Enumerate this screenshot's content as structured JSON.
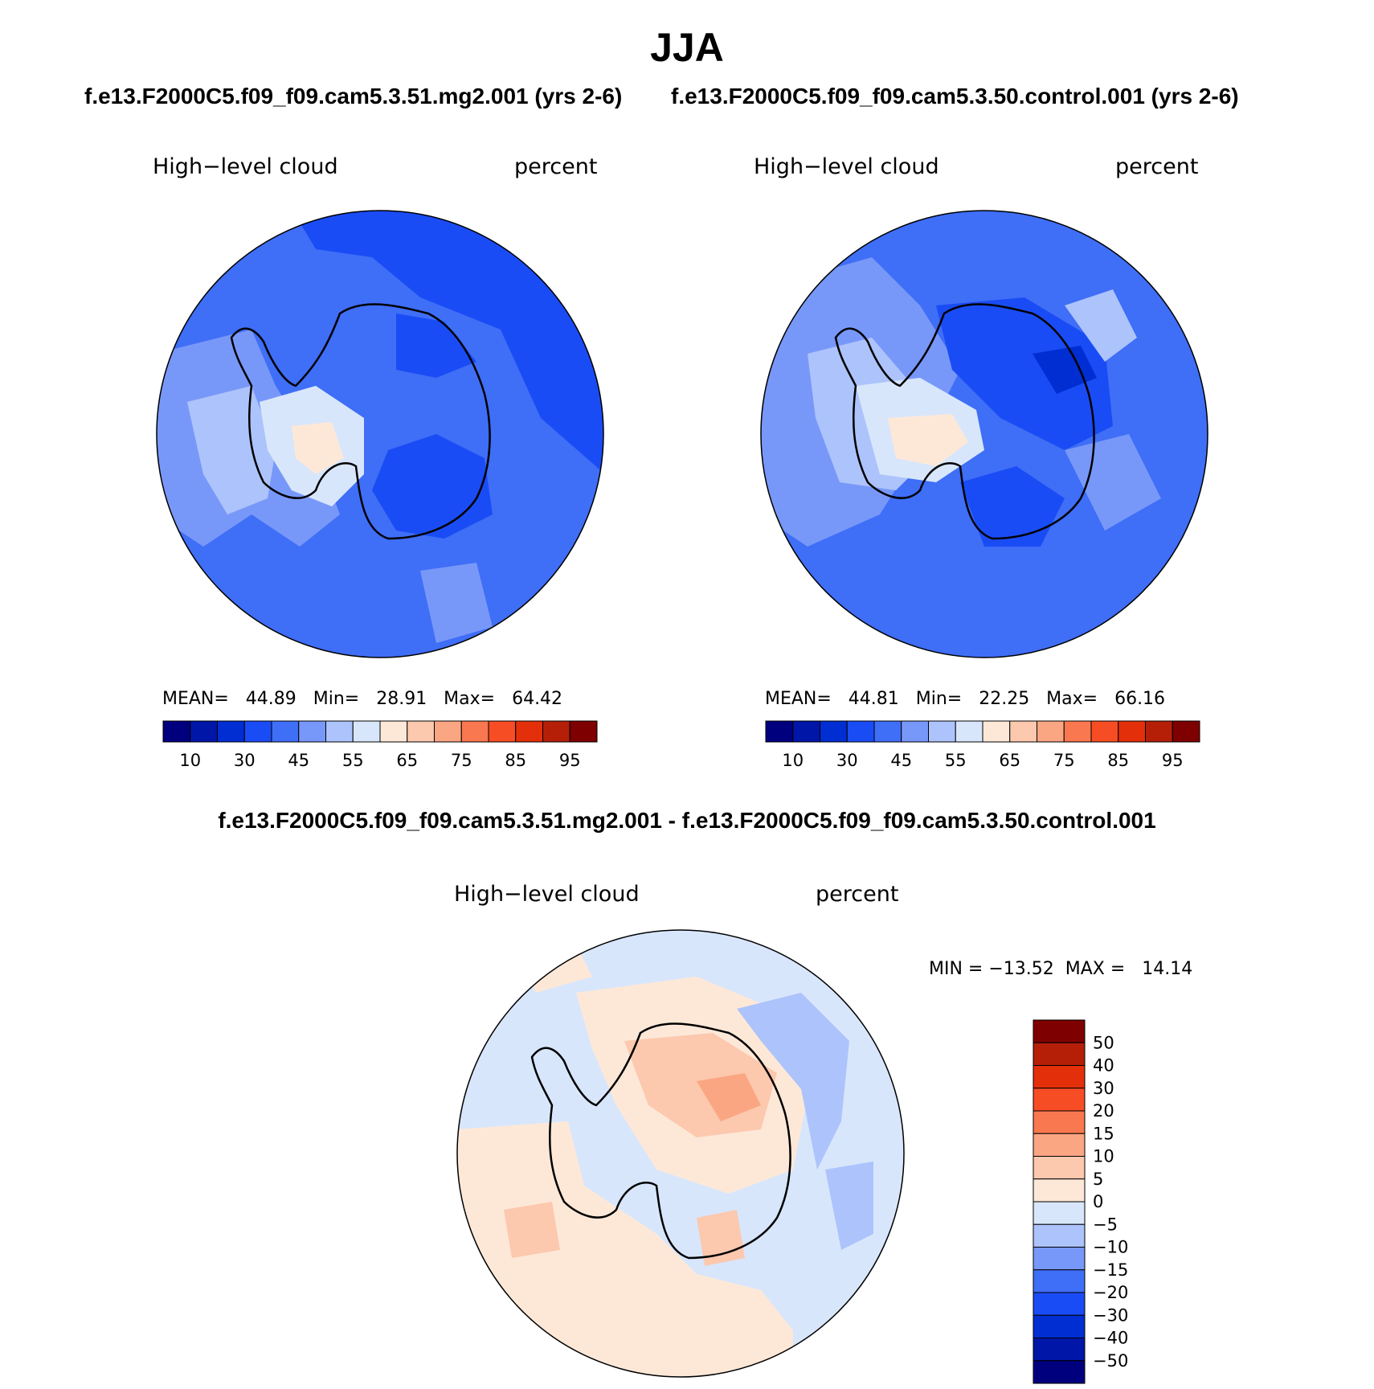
{
  "title": "JJA",
  "case_titles": {
    "left": "f.e13.F2000C5.f09_f09.cam5.3.51.mg2.001 (yrs 2-6)",
    "right": "f.e13.F2000C5.f09_f09.cam5.3.50.control.001 (yrs 2-6)"
  },
  "diff_title": "f.e13.F2000C5.f09_f09.cam5.3.51.mg2.001 - f.e13.F2000C5.f09_f09.cam5.3.50.control.001",
  "panels": [
    {
      "variable": "High−level cloud",
      "units": "percent",
      "stats": "MEAN=   44.89   Min=   28.91   Max=   64.42"
    },
    {
      "variable": "High−level cloud",
      "units": "percent",
      "stats": "MEAN=   44.81   Min=   22.25   Max=   66.16"
    },
    {
      "variable": "High−level cloud",
      "units": "percent",
      "stats": "MIN = −13.52  MAX =   14.14"
    }
  ],
  "colorbar_main": {
    "colors": [
      "#00007f",
      "#0016a8",
      "#002ed2",
      "#1a4cf5",
      "#3f6ef7",
      "#7898f9",
      "#adc3fb",
      "#d8e6fc",
      "#fde8d8",
      "#fcc8ae",
      "#fba683",
      "#f9784f",
      "#f74d24",
      "#e4300a",
      "#b51f08",
      "#7f0000"
    ],
    "tick_labels": [
      "10",
      "30",
      "45",
      "55",
      "65",
      "75",
      "85",
      "95"
    ]
  },
  "colorbar_diff": {
    "colors": [
      "#7f0000",
      "#b51f08",
      "#e4300a",
      "#f74d24",
      "#f9784f",
      "#fba683",
      "#fcc8ae",
      "#fde8d8",
      "#d8e6fc",
      "#adc3fb",
      "#7898f9",
      "#3f6ef7",
      "#1a4cf5",
      "#002ed2",
      "#0016a8",
      "#00007f"
    ],
    "tick_labels": [
      "50",
      "40",
      "30",
      "20",
      "15",
      "10",
      "5",
      "0",
      "−5",
      "−10",
      "−15",
      "−20",
      "−30",
      "−40",
      "−50"
    ]
  }
}
